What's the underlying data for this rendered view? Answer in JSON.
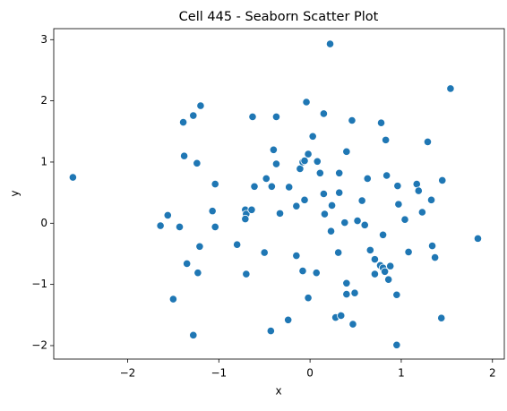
{
  "chart_data": {
    "type": "scatter",
    "title": "Cell 445 - Seaborn Scatter Plot",
    "x_label": "x",
    "y_label": "y",
    "color": "#1f77b4",
    "grid": false,
    "xlim": [
      -2.81,
      2.13
    ],
    "ylim": [
      -2.22,
      3.18
    ],
    "xticks": [
      {
        "value": -2,
        "label": "−2"
      },
      {
        "value": -1,
        "label": "−1"
      },
      0,
      1,
      2
    ],
    "yticks": [
      {
        "value": -2,
        "label": "−2"
      },
      {
        "value": -1,
        "label": "−1"
      },
      0,
      1,
      2,
      3
    ],
    "series": [
      {
        "name": "points",
        "color": "#1f77b4",
        "x": [
          -2.6,
          -1.56,
          -1.64,
          -1.43,
          -1.5,
          -1.28,
          -1.35,
          -1.23,
          -1.21,
          -1.24,
          -1.38,
          -1.39,
          -1.28,
          -1.2,
          -1.04,
          -1.07,
          -1.04,
          -0.8,
          -0.71,
          -0.7,
          -0.71,
          -0.64,
          -0.61,
          -0.63,
          -0.7,
          -0.5,
          -0.48,
          -0.42,
          -0.4,
          -0.37,
          -0.37,
          -0.33,
          -0.43,
          -0.23,
          -0.15,
          -0.15,
          -0.24,
          -0.11,
          -0.08,
          -0.06,
          -0.06,
          -0.02,
          -0.04,
          -0.08,
          -0.02,
          0.03,
          0.07,
          0.08,
          0.11,
          0.15,
          0.15,
          0.16,
          0.24,
          0.23,
          0.22,
          0.28,
          0.31,
          0.32,
          0.32,
          0.34,
          0.38,
          0.4,
          0.4,
          0.4,
          0.46,
          0.49,
          0.47,
          0.52,
          0.57,
          0.6,
          0.63,
          0.66,
          0.71,
          0.71,
          0.77,
          0.8,
          0.8,
          0.82,
          0.78,
          0.83,
          0.84,
          0.86,
          0.88,
          0.96,
          0.97,
          0.95,
          0.95,
          1.04,
          1.08,
          1.17,
          1.19,
          1.23,
          1.29,
          1.33,
          1.34,
          1.37,
          1.45,
          1.44,
          1.54,
          1.84
        ],
        "values": [
          0.75,
          0.13,
          -0.04,
          -0.06,
          -1.24,
          -1.83,
          -0.66,
          -0.81,
          -0.38,
          0.98,
          1.1,
          1.65,
          1.76,
          1.92,
          0.64,
          0.2,
          -0.06,
          -0.35,
          0.22,
          0.15,
          0.07,
          0.22,
          0.6,
          1.74,
          -0.83,
          -0.48,
          0.73,
          0.6,
          1.2,
          0.97,
          1.74,
          0.16,
          -1.76,
          0.59,
          0.28,
          -0.53,
          -1.58,
          0.89,
          1.0,
          1.02,
          0.38,
          1.13,
          1.98,
          -0.78,
          -1.22,
          1.42,
          -0.81,
          1.01,
          0.82,
          1.79,
          0.48,
          0.15,
          0.29,
          -0.13,
          2.93,
          -1.54,
          -0.48,
          0.82,
          0.5,
          -1.51,
          0.01,
          1.17,
          -0.98,
          -1.16,
          1.68,
          -1.14,
          -1.65,
          0.04,
          0.37,
          -0.03,
          0.73,
          -0.44,
          -0.59,
          -0.83,
          -0.69,
          -0.73,
          -0.19,
          -0.79,
          1.64,
          1.36,
          0.78,
          -0.92,
          -0.7,
          0.61,
          0.31,
          -1.17,
          -1.99,
          0.06,
          -0.47,
          0.64,
          0.53,
          0.18,
          1.33,
          0.38,
          -0.37,
          -0.56,
          0.7,
          -1.55,
          2.2,
          -0.25
        ]
      }
    ]
  }
}
